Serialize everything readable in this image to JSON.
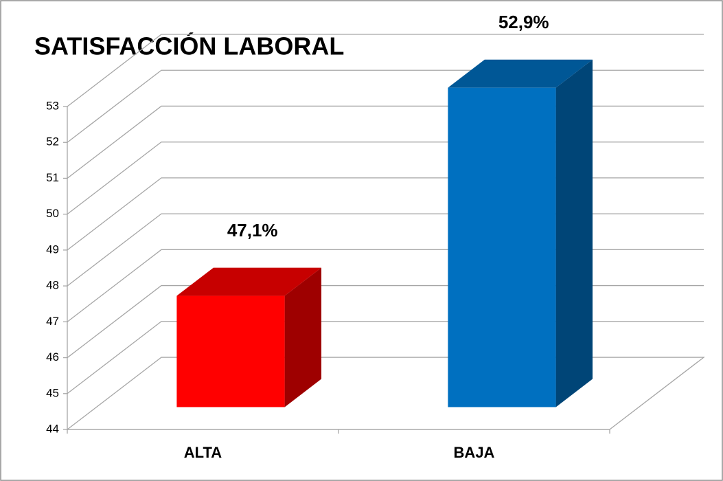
{
  "chart_data": {
    "type": "bar3d",
    "title": "SATISFACCIÓN LABORAL",
    "categories": [
      "ALTA",
      "BAJA"
    ],
    "values": [
      47.1,
      52.9
    ],
    "value_labels": [
      "47,1%",
      "52,9%"
    ],
    "colors": [
      "#ff0000",
      "#0070c0"
    ],
    "ylim": [
      44,
      53
    ],
    "yticks": [
      44,
      45,
      46,
      47,
      48,
      49,
      50,
      51,
      52,
      53
    ],
    "grid": true
  }
}
